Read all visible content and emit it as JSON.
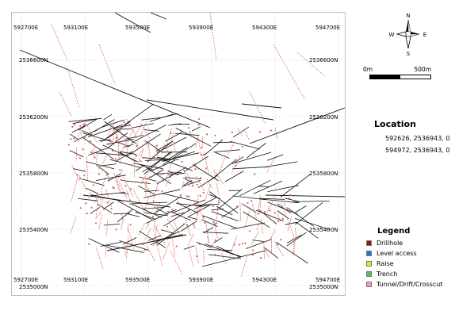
{
  "map": {
    "top_eastings": [
      "592700E",
      "593100E",
      "593500E",
      "593900E",
      "594300E",
      "594700E"
    ],
    "bottom_eastings": [
      "592700E",
      "593100E",
      "593500E",
      "593900E",
      "594300E",
      "594700E"
    ],
    "left_northings": [
      "2536600N",
      "2536200N",
      "2535800N",
      "2535400N",
      "2535000N"
    ],
    "right_northings": [
      "2536600N",
      "2536200N",
      "2535800N",
      "2535400N",
      "2535000N"
    ],
    "line_color": "#111111",
    "drillhole_color": "#d9604f"
  },
  "north_arrow": {
    "n": "N",
    "s": "S",
    "e": "E",
    "w": "W"
  },
  "scale_bar": {
    "start_label": "0m",
    "end_label": "500m"
  },
  "location": {
    "title": "Location",
    "rows": [
      "592626, 2536943, 0",
      "594972, 2536943, 0"
    ]
  },
  "legend": {
    "title": "Legend",
    "items": [
      {
        "label": "Drillhole",
        "color": "#8b1a1a"
      },
      {
        "label": "Level access",
        "color": "#1f77d0"
      },
      {
        "label": "Raise",
        "color": "#e8e820"
      },
      {
        "label": "Trench",
        "color": "#5cbf5c"
      },
      {
        "label": "Tunnel/Drift/Crosscut",
        "color": "#f0a0b8"
      }
    ]
  }
}
